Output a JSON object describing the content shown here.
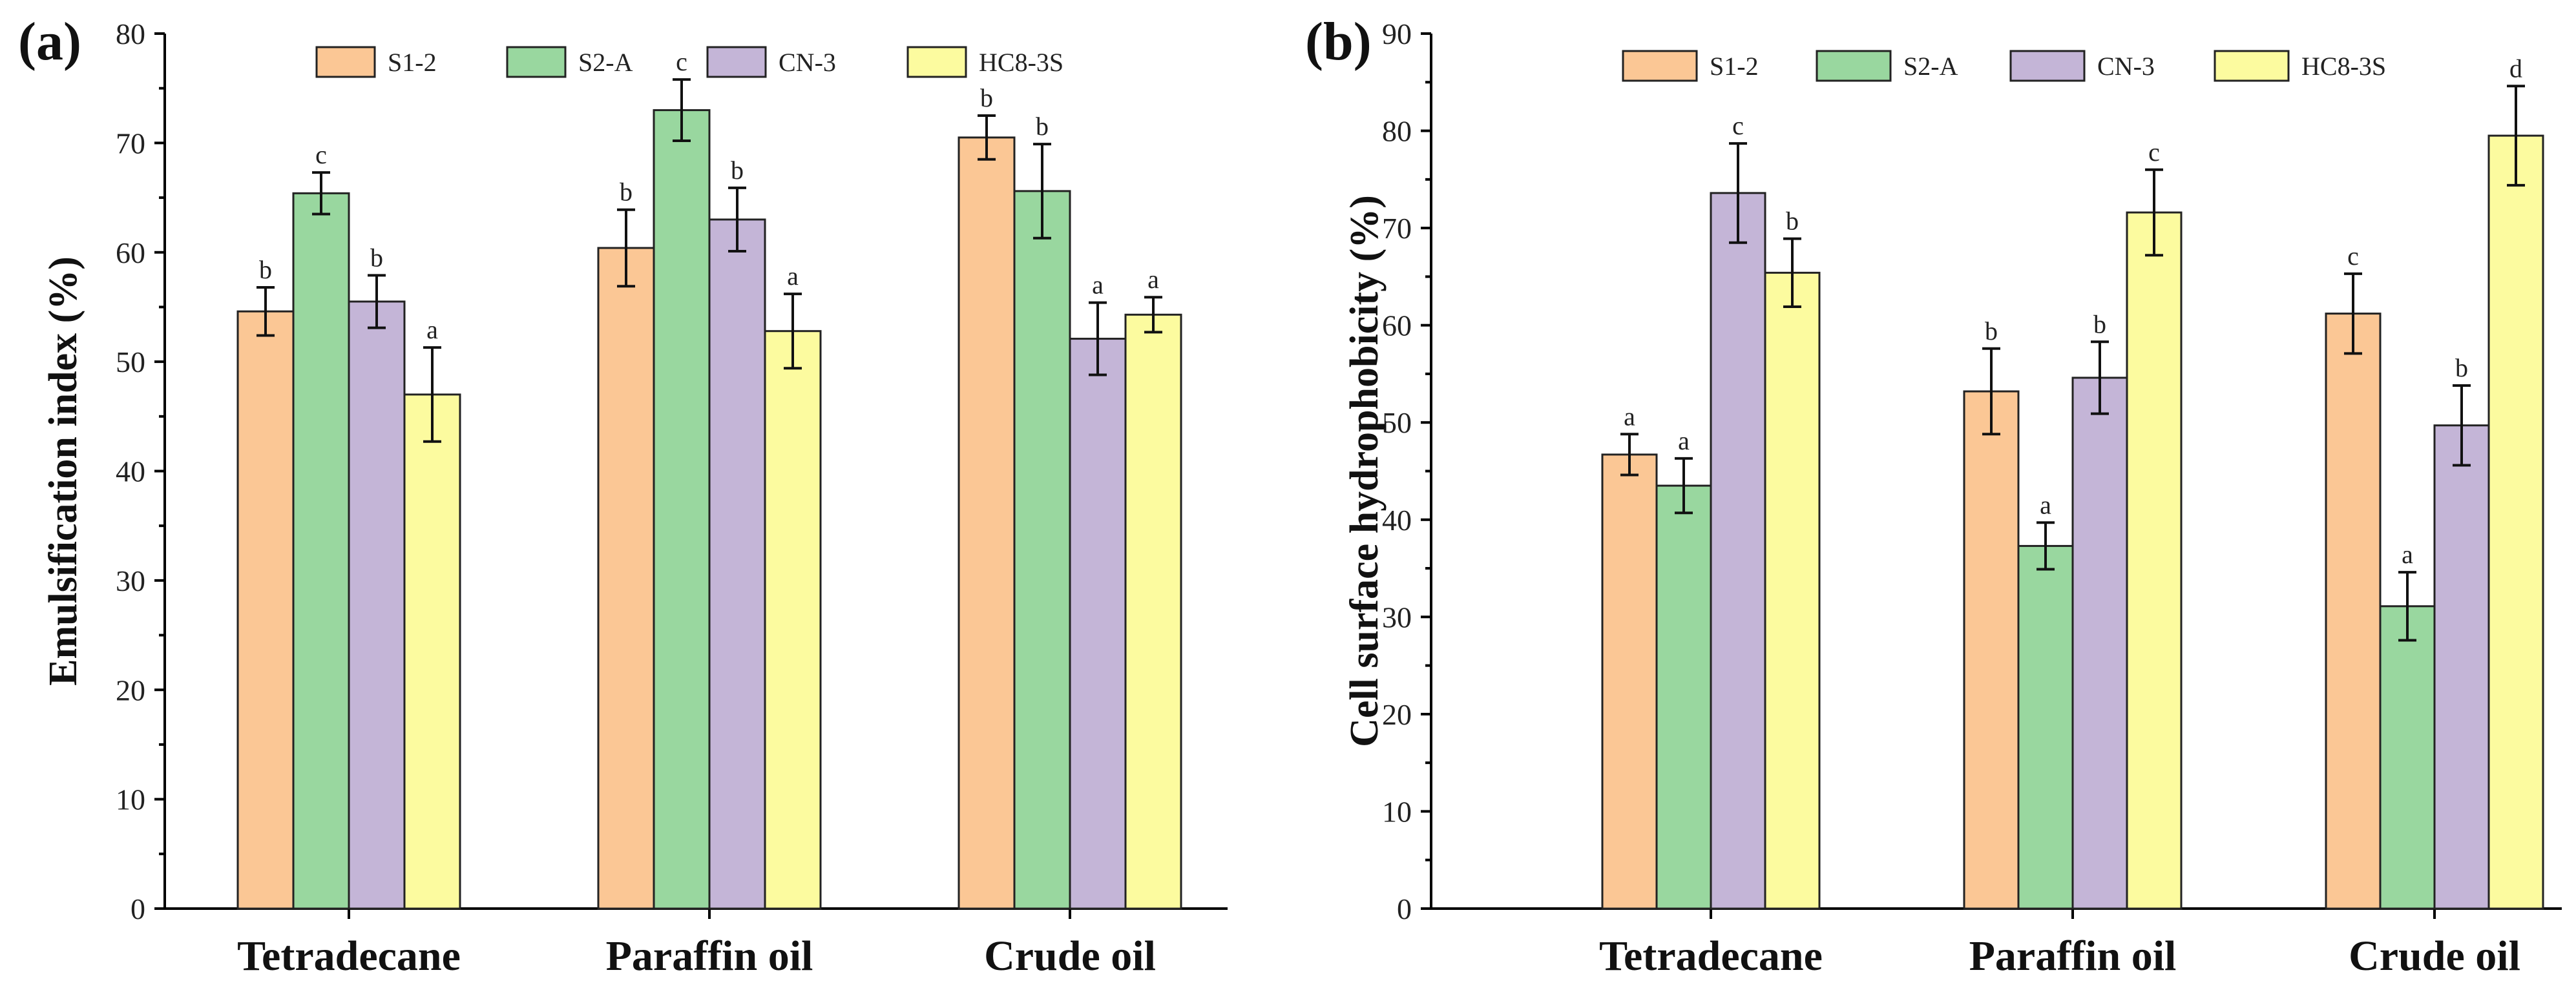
{
  "legend": {
    "series_names": [
      "S1-2",
      "S2-A",
      "CN-3",
      "HC8-3S"
    ],
    "colors": [
      "#FBC795",
      "#99D79F",
      "#C4B5D7",
      "#FCFB9F"
    ]
  },
  "chart_data": [
    {
      "type": "bar",
      "panel_label": "(a)",
      "title": "",
      "xlabel": "",
      "ylabel": "Emulsification index (%)",
      "ylim": [
        0,
        80
      ],
      "yticks": [
        0,
        10,
        20,
        30,
        40,
        50,
        60,
        70,
        80
      ],
      "legend_position": "top",
      "categories": [
        "Tetradecane",
        "Paraffin oil",
        "Crude oil"
      ],
      "series": [
        {
          "name": "S1-2",
          "values": [
            54.6,
            60.4,
            70.5
          ],
          "errors": [
            2.2,
            3.5,
            2.0
          ],
          "letters": [
            "b",
            "b",
            "b"
          ]
        },
        {
          "name": "S2-A",
          "values": [
            65.4,
            73.0,
            65.6
          ],
          "errors": [
            1.9,
            2.8,
            4.3
          ],
          "letters": [
            "c",
            "c",
            "b"
          ]
        },
        {
          "name": "CN-3",
          "values": [
            55.5,
            63.0,
            52.1
          ],
          "errors": [
            2.4,
            2.9,
            3.3
          ],
          "letters": [
            "b",
            "b",
            "a"
          ]
        },
        {
          "name": "HC8-3S",
          "values": [
            47.0,
            52.8,
            54.3
          ],
          "errors": [
            4.3,
            3.4,
            1.6
          ],
          "letters": [
            "a",
            "a",
            "a"
          ]
        }
      ]
    },
    {
      "type": "bar",
      "panel_label": "(b)",
      "title": "",
      "xlabel": "",
      "ylabel": "Cell surface hydrophobicity (%)",
      "ylim": [
        0,
        90
      ],
      "yticks": [
        0,
        10,
        20,
        30,
        40,
        50,
        60,
        70,
        80,
        90
      ],
      "legend_position": "top",
      "categories": [
        "Tetradecane",
        "Paraffin oil",
        "Crude oil"
      ],
      "series": [
        {
          "name": "S1-2",
          "values": [
            46.7,
            53.2,
            61.2
          ],
          "errors": [
            2.1,
            4.4,
            4.1
          ],
          "letters": [
            "a",
            "b",
            "c"
          ]
        },
        {
          "name": "S2-A",
          "values": [
            43.5,
            37.3,
            31.1
          ],
          "errors": [
            2.8,
            2.4,
            3.5
          ],
          "letters": [
            "a",
            "a",
            "a"
          ]
        },
        {
          "name": "CN-3",
          "values": [
            73.6,
            54.6,
            49.7
          ],
          "errors": [
            5.1,
            3.7,
            4.1
          ],
          "letters": [
            "c",
            "b",
            "b"
          ]
        },
        {
          "name": "HC8-3S",
          "values": [
            65.4,
            71.6,
            79.5
          ],
          "errors": [
            3.5,
            4.4,
            5.1
          ],
          "letters": [
            "b",
            "c",
            "d"
          ]
        }
      ]
    }
  ]
}
